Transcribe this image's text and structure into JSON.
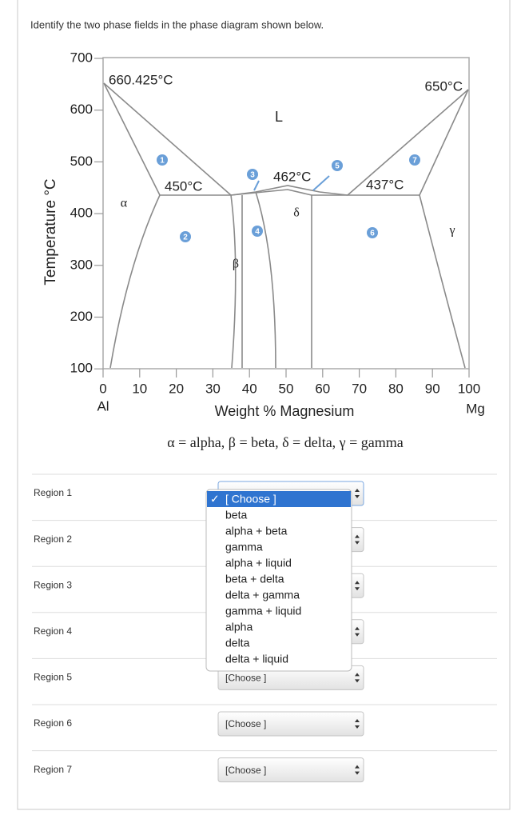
{
  "question": "Identify the two phase fields in the phase diagram shown below.",
  "figure": {
    "y_axis_label": "Temperature °C",
    "x_axis_label": "Weight % Magnesium",
    "yticks": [
      "700",
      "600",
      "500",
      "400",
      "300",
      "200",
      "100"
    ],
    "xticks": [
      "0",
      "10",
      "20",
      "30",
      "40",
      "50",
      "60",
      "70",
      "80",
      "90",
      "100"
    ],
    "left_element": "Al",
    "right_element": "Mg",
    "temperatures": [
      "660.425°C",
      "450°C",
      "462°C",
      "437°C",
      "650°C"
    ],
    "phases": [
      "L",
      "α",
      "β",
      "δ",
      "γ"
    ],
    "region_markers": [
      "1",
      "2",
      "3",
      "4",
      "5",
      "6",
      "7"
    ],
    "legend": "α = alpha, β = beta, δ = delta, γ = gamma"
  },
  "form": {
    "rows": [
      {
        "label": "Region 1"
      },
      {
        "label": "Region 2"
      },
      {
        "label": "Region 3"
      },
      {
        "label": "Region 4"
      },
      {
        "label": "Region 5",
        "selected": "[Choose ]"
      },
      {
        "label": "Region 6",
        "selected": "[Choose ]"
      },
      {
        "label": "Region 7",
        "selected": "[Choose ]"
      }
    ],
    "dropdown": {
      "checkmark": "✓",
      "options": [
        "[ Choose ]",
        "beta",
        "alpha + beta",
        "gamma",
        "alpha + liquid",
        "beta + delta",
        "delta + gamma",
        "gamma + liquid",
        "alpha",
        "delta",
        "delta + liquid"
      ]
    }
  }
}
